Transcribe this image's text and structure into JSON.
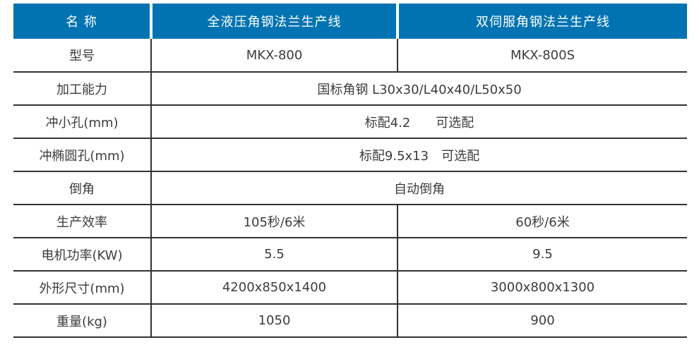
{
  "table": {
    "colors": {
      "header_bg": "#0273B2",
      "header_text": "#ffffff",
      "border": "#333333",
      "body_text": "#3c3c3c",
      "background": "#ffffff"
    },
    "header": {
      "name_label": "名 称",
      "col1": "全液压角钢法兰生产线",
      "col2": "双伺服角钢法兰生产线"
    },
    "rows": [
      {
        "label": "型号",
        "col1": "MKX-800",
        "col2": "MKX-800S"
      },
      {
        "label": "加工能力",
        "value": "国标角钢 L30x30/L40x40/L50x50"
      },
      {
        "label": "冲小孔(mm)",
        "value": "标配4.2　　可选配"
      },
      {
        "label": "冲椭圆孔(mm)",
        "value": "标配9.5x13　可选配"
      },
      {
        "label": "倒角",
        "value": "自动倒角"
      },
      {
        "label": "生产效率",
        "col1": "105秒/6米",
        "col2": "60秒/6米"
      },
      {
        "label": "电机功率(KW)",
        "col1": "5.5",
        "col2": "9.5"
      },
      {
        "label": "外形尺寸(mm)",
        "col1": "4200x850x1400",
        "col2": "3000x800x1300"
      },
      {
        "label": "重量(kg)",
        "col1": "1050",
        "col2": "900"
      }
    ]
  }
}
